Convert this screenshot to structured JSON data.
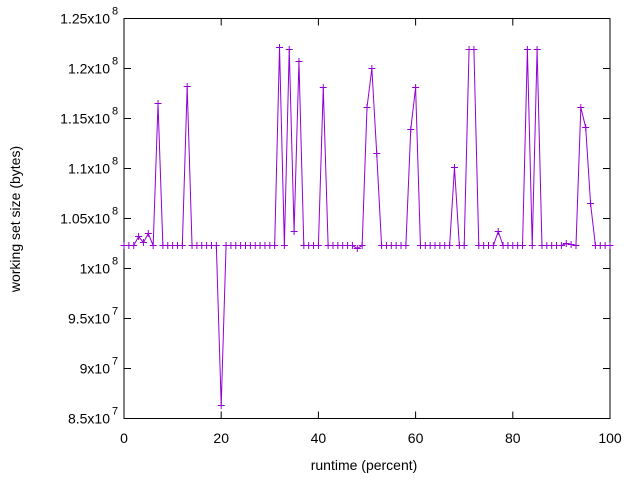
{
  "chart_data": {
    "type": "line",
    "title": "",
    "xlabel": "runtime (percent)",
    "ylabel": "working set size (bytes)",
    "xlim": [
      0,
      100
    ],
    "ylim": [
      85000000,
      125000000
    ],
    "x_ticks": [
      0,
      20,
      40,
      60,
      80,
      100
    ],
    "x_tick_labels": [
      "0",
      "20",
      "40",
      "60",
      "80",
      "100"
    ],
    "y_ticks": [
      {
        "value": 85000000,
        "mantissa": "8.5x10",
        "exp": "7"
      },
      {
        "value": 90000000,
        "mantissa": "9x10",
        "exp": "7"
      },
      {
        "value": 95000000,
        "mantissa": "9.5x10",
        "exp": "7"
      },
      {
        "value": 100000000,
        "mantissa": "1x10",
        "exp": "8"
      },
      {
        "value": 105000000,
        "mantissa": "1.05x10",
        "exp": "8"
      },
      {
        "value": 110000000,
        "mantissa": "1.1x10",
        "exp": "8"
      },
      {
        "value": 115000000,
        "mantissa": "1.15x10",
        "exp": "8"
      },
      {
        "value": 120000000,
        "mantissa": "1.2x10",
        "exp": "8"
      },
      {
        "value": 125000000,
        "mantissa": "1.25x10",
        "exp": "8"
      }
    ],
    "grid": false,
    "legend": "none",
    "series": [
      {
        "color": "#9400d3",
        "marker": "plus",
        "x": [
          0,
          1,
          2,
          3,
          4,
          5,
          6,
          7,
          8,
          9,
          10,
          11,
          12,
          13,
          14,
          15,
          16,
          17,
          18,
          19,
          20,
          21,
          22,
          23,
          24,
          25,
          26,
          27,
          28,
          29,
          30,
          31,
          32,
          33,
          34,
          35,
          36,
          37,
          38,
          39,
          40,
          41,
          42,
          43,
          44,
          45,
          46,
          47,
          48,
          49,
          50,
          51,
          52,
          53,
          54,
          55,
          56,
          57,
          58,
          59,
          60,
          61,
          62,
          63,
          64,
          65,
          66,
          67,
          68,
          69,
          70,
          71,
          72,
          73,
          74,
          75,
          76,
          77,
          78,
          79,
          80,
          81,
          82,
          83,
          84,
          85,
          86,
          87,
          88,
          89,
          90,
          91,
          92,
          93,
          94,
          95,
          96,
          97,
          98,
          99,
          100
        ],
        "y": [
          102300000,
          102300000,
          102300000,
          103200000,
          102600000,
          103500000,
          102300000,
          116500000,
          102300000,
          102300000,
          102300000,
          102300000,
          102300000,
          118200000,
          102300000,
          102300000,
          102300000,
          102300000,
          102300000,
          102300000,
          86300000,
          102300000,
          102300000,
          102300000,
          102300000,
          102300000,
          102300000,
          102300000,
          102300000,
          102300000,
          102300000,
          102300000,
          122100000,
          102300000,
          121900000,
          103700000,
          120700000,
          102300000,
          102300000,
          102300000,
          102300000,
          118100000,
          102300000,
          102300000,
          102300000,
          102300000,
          102300000,
          102300000,
          102000000,
          102300000,
          116100000,
          120000000,
          111500000,
          102300000,
          102300000,
          102300000,
          102300000,
          102300000,
          102300000,
          113900000,
          118100000,
          102300000,
          102300000,
          102300000,
          102300000,
          102300000,
          102300000,
          102300000,
          110100000,
          102300000,
          102300000,
          121900000,
          121900000,
          102300000,
          102300000,
          102300000,
          102300000,
          103700000,
          102300000,
          102300000,
          102300000,
          102300000,
          102300000,
          121900000,
          102300000,
          121900000,
          102300000,
          102300000,
          102300000,
          102300000,
          102300000,
          102500000,
          102400000,
          102300000,
          116100000,
          114100000,
          106500000,
          102300000,
          102300000,
          102300000,
          102300000
        ]
      }
    ]
  }
}
